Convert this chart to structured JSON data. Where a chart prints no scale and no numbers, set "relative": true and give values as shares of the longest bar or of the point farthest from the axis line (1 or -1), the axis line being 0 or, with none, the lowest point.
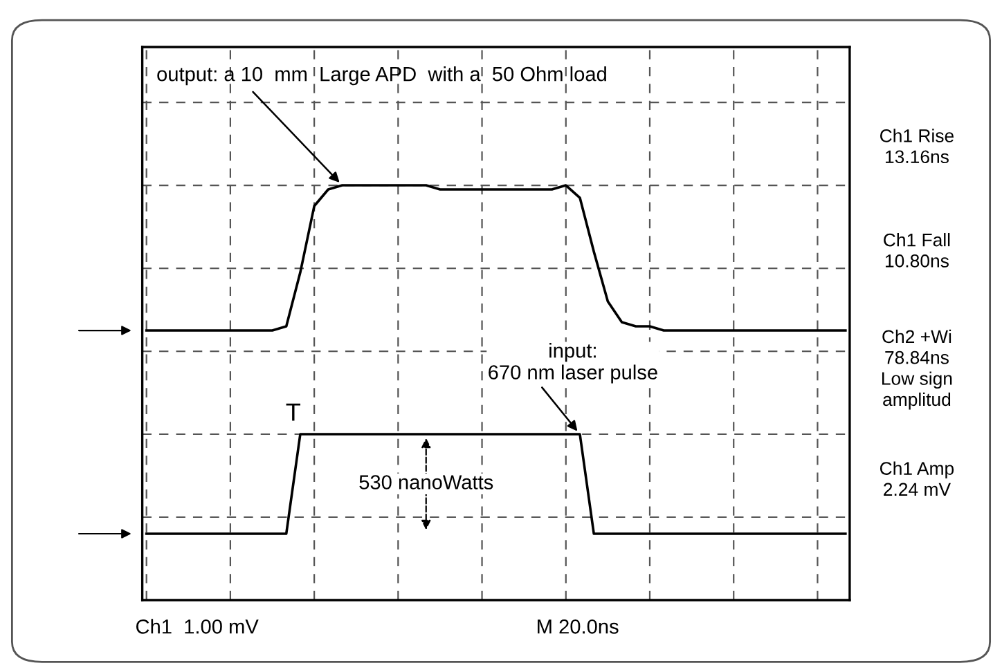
{
  "chart_data": {
    "type": "line",
    "relative": true,
    "categories": [
      null,
      null,
      null,
      null,
      null,
      null,
      null,
      null,
      null,
      null,
      null,
      null,
      null,
      null,
      null,
      null,
      null,
      null,
      null,
      null,
      null,
      null,
      null,
      null,
      null,
      null,
      null,
      null,
      null,
      null,
      null,
      null,
      null,
      null,
      null,
      null,
      null,
      null,
      null,
      null,
      null,
      null,
      null,
      null,
      null,
      null,
      null,
      null,
      null,
      null,
      null
    ],
    "grid": true,
    "line_style": "solid",
    "marker": "none",
    "series": [
      {
        "color": "#000000",
        "values": [
          0.65,
          0.65,
          0.65,
          0.65,
          0.65,
          0.65,
          0.65,
          0.65,
          0.65,
          0.65,
          0.66,
          0.79,
          0.95,
          0.99,
          1.0,
          1.0,
          1.0,
          1.0,
          1.0,
          1.0,
          1.0,
          0.99,
          0.99,
          0.99,
          0.99,
          0.99,
          0.99,
          0.99,
          0.99,
          0.99,
          1.0,
          0.97,
          0.84,
          0.72,
          0.67,
          0.66,
          0.66,
          0.65,
          0.65,
          0.65,
          0.65,
          0.65,
          0.65,
          0.65,
          0.65,
          0.65,
          0.65,
          0.65,
          0.65,
          0.65,
          0.65
        ]
      },
      {
        "color": "#000000",
        "values": [
          0.16,
          0.16,
          0.16,
          0.16,
          0.16,
          0.16,
          0.16,
          0.16,
          0.16,
          0.16,
          0.16,
          0.4,
          0.4,
          0.4,
          0.4,
          0.4,
          0.4,
          0.4,
          0.4,
          0.4,
          0.4,
          0.4,
          0.4,
          0.4,
          0.4,
          0.4,
          0.4,
          0.4,
          0.4,
          0.4,
          0.4,
          0.4,
          0.16,
          0.16,
          0.16,
          0.16,
          0.16,
          0.16,
          0.16,
          0.16,
          0.16,
          0.16,
          0.16,
          0.16,
          0.16,
          0.16,
          0.16,
          0.16,
          0.16,
          0.16,
          0.16
        ]
      }
    ],
    "annotations": [
      "output: a 10  mm  Large APD  with a  50 Ohm load",
      {
        "text": "input:\n670 nm laser pulse",
        "y": 0.4
      },
      {
        "text": "530 nanoWatts",
        "y": 0.4
      },
      "T",
      "Ch1 Rise\n13.16ns",
      "Ch1 Fall\n10.80ns",
      "Ch2 +Wi\n78.84ns\nLow sign\namplitud",
      "Ch1 Amp\n2.24 mV",
      "Ch1  1.00 mV",
      "M 20.0ns"
    ]
  }
}
